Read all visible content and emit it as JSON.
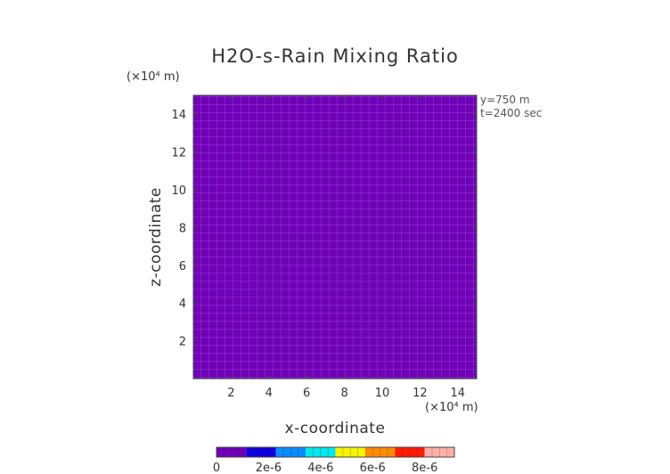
{
  "chart_data": {
    "type": "heatmap",
    "title": "H2O-s-Rain Mixing Ratio",
    "xlabel": "x-coordinate",
    "ylabel": "z-coordinate",
    "x_unit": "(×10⁴ m)",
    "y_unit": "(×10⁴ m)",
    "xlim": [
      0,
      15
    ],
    "ylim": [
      0,
      15
    ],
    "x_ticks": [
      "2",
      "4",
      "6",
      "8",
      "10",
      "12",
      "14"
    ],
    "y_ticks": [
      "2",
      "4",
      "6",
      "8",
      "10",
      "12",
      "14"
    ],
    "x_tick_values": [
      2,
      4,
      6,
      8,
      10,
      12,
      14
    ],
    "y_tick_values": [
      2,
      4,
      6,
      8,
      10,
      12,
      14
    ],
    "annotations": [
      "y=750 m",
      "t=2400 sec"
    ],
    "field_value": 0,
    "fill_color": "#7000b8",
    "colorbar": {
      "colors": [
        "#7000b8",
        "#1000e0",
        "#0a8cff",
        "#00e8ee",
        "#f6f600",
        "#ff8a00",
        "#ff1a00",
        "#ffb0a8"
      ],
      "tick_labels": [
        "0",
        "2e-6",
        "4e-6",
        "6e-6",
        "8e-6"
      ],
      "tick_values": [
        0,
        2e-06,
        4e-06,
        6e-06,
        8e-06
      ],
      "max": 8e-06
    }
  }
}
